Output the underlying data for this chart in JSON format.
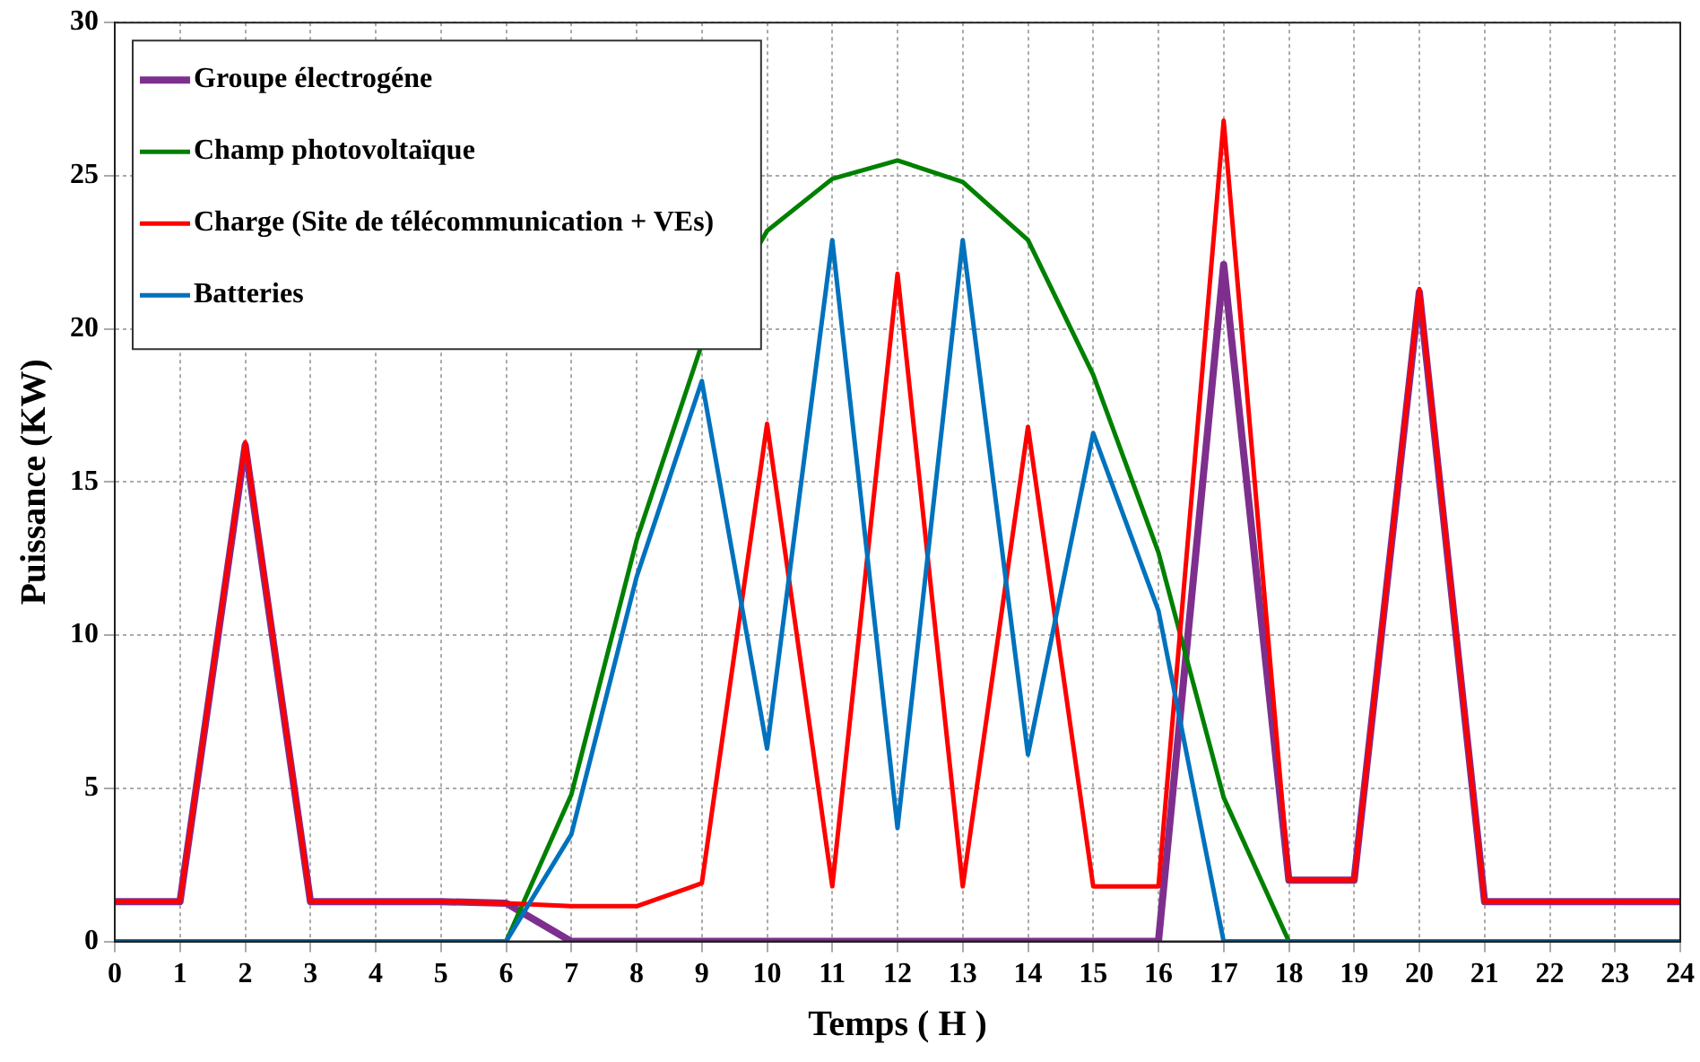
{
  "chart_data": {
    "type": "line",
    "xlabel": "Temps ( H )",
    "ylabel": "Puissance (KW)",
    "x": [
      0,
      1,
      2,
      3,
      4,
      5,
      6,
      7,
      8,
      9,
      10,
      11,
      12,
      13,
      14,
      15,
      16,
      17,
      18,
      19,
      20,
      21,
      22,
      23,
      24
    ],
    "series": [
      {
        "name": "Groupe électrogéne",
        "color": "#7e2f8e",
        "values": [
          1.3,
          1.3,
          16.2,
          1.3,
          1.3,
          1.3,
          1.25,
          0,
          0,
          0,
          0,
          0,
          0,
          0,
          0,
          0,
          0,
          22.1,
          2,
          2,
          21.2,
          1.3,
          1.3,
          1.3,
          1.3
        ]
      },
      {
        "name": "Champ photovoltaïque",
        "color": "#008000",
        "values": [
          null,
          null,
          null,
          null,
          null,
          null,
          0,
          4.8,
          13.1,
          19.5,
          23.2,
          24.9,
          25.5,
          24.8,
          22.9,
          18.5,
          12.7,
          4.7,
          0,
          null,
          null,
          null,
          null,
          null,
          null
        ]
      },
      {
        "name": "Charge (Site de télécommunication + VEs)",
        "color": "#ff0000",
        "values": [
          1.3,
          1.3,
          16.3,
          1.3,
          1.3,
          1.3,
          1.25,
          1.15,
          1.15,
          1.9,
          16.9,
          1.8,
          21.8,
          1.8,
          16.8,
          1.8,
          1.8,
          26.8,
          2,
          2,
          21.3,
          1.3,
          1.3,
          1.3,
          1.3
        ]
      },
      {
        "name": "Batteries",
        "color": "#0072bd",
        "values": [
          0,
          0,
          0,
          0,
          0,
          0,
          0,
          3.5,
          11.9,
          18.3,
          6.3,
          22.9,
          3.7,
          22.9,
          6.1,
          16.6,
          10.8,
          0,
          0,
          0,
          0,
          0,
          0,
          0,
          0
        ]
      }
    ],
    "xlim": [
      0,
      24
    ],
    "xticks": [
      0,
      1,
      2,
      3,
      4,
      5,
      6,
      7,
      8,
      9,
      10,
      11,
      12,
      13,
      14,
      15,
      16,
      17,
      18,
      19,
      20,
      21,
      22,
      23,
      24
    ],
    "ylim": [
      0,
      30
    ],
    "yticks": [
      0,
      5,
      10,
      15,
      20,
      25,
      30
    ],
    "grid": true,
    "legend": "top left",
    "marker": "none",
    "line_style": "solid"
  }
}
